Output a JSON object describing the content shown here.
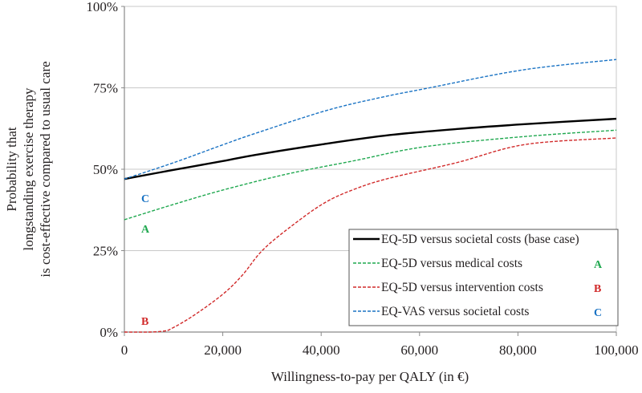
{
  "chart_data": {
    "type": "line",
    "title": "",
    "xlabel": "Willingness-to-pay per QALY (in €)",
    "ylabel": [
      "Probability that",
      "longstanding exercise therapy",
      "is cost-effective compared to usual care"
    ],
    "xlim": [
      0,
      100000
    ],
    "ylim": [
      0,
      100
    ],
    "xticks": [
      "0",
      "20,000",
      "40,000",
      "60,000",
      "80,000",
      "100,000"
    ],
    "xtick_values": [
      0,
      20000,
      40000,
      60000,
      80000,
      100000
    ],
    "yticks": [
      "0%",
      "25%",
      "50%",
      "75%",
      "100%"
    ],
    "ytick_values": [
      0,
      25,
      50,
      75,
      100
    ],
    "grid": "horizontal",
    "legend_placement": "bottom-right",
    "series": [
      {
        "name": "EQ-5D versus societal costs (base case)",
        "tag": "",
        "color": "#000000",
        "dash": false,
        "x": [
          0,
          10000,
          20000,
          26600,
          40000,
          54000,
          68000,
          81000,
          100000
        ],
        "y": [
          47,
          49.8,
          52.5,
          54.4,
          57.6,
          60.5,
          62.4,
          63.8,
          65.5
        ]
      },
      {
        "name": "EQ-5D versus medical costs",
        "tag": "A",
        "color": "#1fa84f",
        "dash": true,
        "x": [
          0,
          10000,
          20000,
          33000,
          47000,
          61000,
          81000,
          100000
        ],
        "y": [
          34.5,
          39.2,
          43.6,
          48.5,
          52.7,
          56.9,
          60,
          62
        ]
      },
      {
        "name": "EQ-5D versus intervention costs",
        "tag": "B",
        "color": "#d12a2a",
        "dash": true,
        "x": [
          0,
          5000,
          8000,
          9500,
          14000,
          20000,
          24000,
          28000,
          33500,
          40600,
          47000,
          54000,
          67500,
          81500,
          100000
        ],
        "y": [
          0,
          0,
          0.3,
          1,
          5,
          11.6,
          17.5,
          25,
          32,
          39.6,
          44,
          47.3,
          52,
          57.6,
          59.6
        ]
      },
      {
        "name": "EQ-VAS versus societal costs",
        "tag": "C",
        "color": "#1a73c4",
        "dash": true,
        "x": [
          0,
          10000,
          20000,
          26600,
          41000,
          52000,
          62000,
          81000,
          100000
        ],
        "y": [
          47,
          52,
          57.5,
          61,
          68,
          72,
          75,
          80.5,
          83.7
        ]
      }
    ],
    "annotations": [
      "A",
      "B",
      "C"
    ]
  }
}
